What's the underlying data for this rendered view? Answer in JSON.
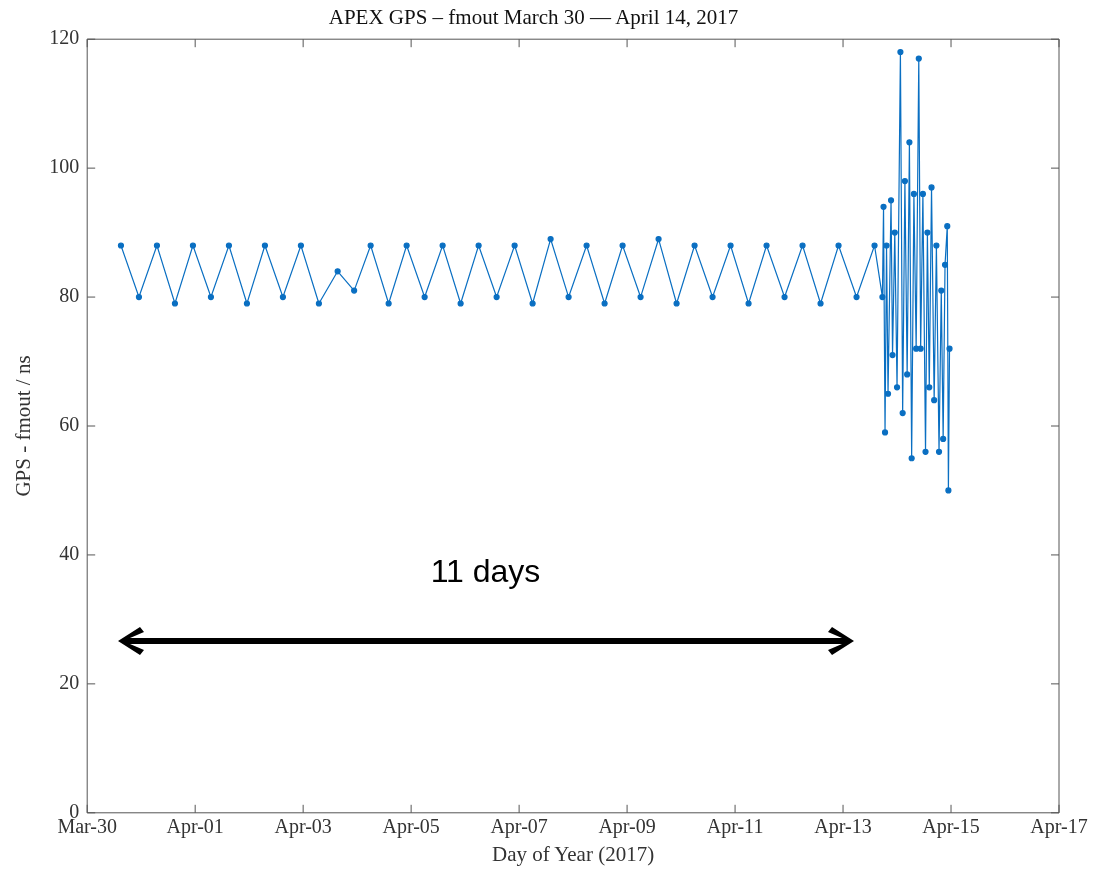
{
  "chart_data": {
    "type": "line",
    "title": "APEX GPS – fmout March 30 — April 14, 2017",
    "xlabel": "Day of Year (2017)",
    "ylabel": "GPS - fmout / ns",
    "x": [
      "2017-03-30T15:00",
      "2017-03-30T23:00",
      "2017-03-31T07:00",
      "2017-03-31T15:00",
      "2017-03-31T23:00",
      "2017-04-01T07:00",
      "2017-04-01T15:00",
      "2017-04-01T23:00",
      "2017-04-02T07:00",
      "2017-04-02T15:00",
      "2017-04-02T23:00",
      "2017-04-03T07:00",
      "2017-04-03T15:20",
      "2017-04-03T22:40",
      "2017-04-04T06:00",
      "2017-04-04T14:00",
      "2017-04-04T22:00",
      "2017-04-05T06:00",
      "2017-04-05T14:00",
      "2017-04-05T22:00",
      "2017-04-06T06:00",
      "2017-04-06T14:00",
      "2017-04-06T22:00",
      "2017-04-07T06:00",
      "2017-04-07T14:00",
      "2017-04-07T22:00",
      "2017-04-08T06:00",
      "2017-04-08T14:00",
      "2017-04-08T22:00",
      "2017-04-09T06:00",
      "2017-04-09T14:00",
      "2017-04-09T22:00",
      "2017-04-10T06:00",
      "2017-04-10T14:00",
      "2017-04-10T22:00",
      "2017-04-11T06:00",
      "2017-04-11T14:00",
      "2017-04-11T22:00",
      "2017-04-12T06:00",
      "2017-04-12T14:00",
      "2017-04-12T22:00",
      "2017-04-13T06:00",
      "2017-04-13T14:00",
      "2017-04-13T17:30",
      "2017-04-13T18:00",
      "2017-04-13T18:40",
      "2017-04-13T19:20",
      "2017-04-13T20:00",
      "2017-04-13T21:20",
      "2017-04-13T22:00",
      "2017-04-13T23:00",
      "2017-04-14T00:00",
      "2017-04-14T01:30",
      "2017-04-14T02:30",
      "2017-04-14T03:30",
      "2017-04-14T04:30",
      "2017-04-14T05:30",
      "2017-04-14T06:30",
      "2017-04-14T07:30",
      "2017-04-14T08:30",
      "2017-04-14T09:40",
      "2017-04-14T10:30",
      "2017-04-14T11:30",
      "2017-04-14T12:40",
      "2017-04-14T13:30",
      "2017-04-14T14:20",
      "2017-04-14T15:20",
      "2017-04-14T16:30",
      "2017-04-14T17:30",
      "2017-04-14T18:40",
      "2017-04-14T19:40",
      "2017-04-14T20:30",
      "2017-04-14T21:20",
      "2017-04-14T22:20",
      "2017-04-14T22:50",
      "2017-04-14T23:20"
    ],
    "series": [
      {
        "color": "#0a6fc2",
        "values": [
          88,
          80,
          88,
          79,
          88,
          80,
          88,
          79,
          88,
          80,
          88,
          79,
          84,
          81,
          88,
          79,
          88,
          80,
          88,
          79,
          88,
          80,
          88,
          79,
          89,
          80,
          88,
          79,
          88,
          80,
          89,
          79,
          88,
          80,
          88,
          79,
          88,
          80,
          88,
          79,
          88,
          80,
          88,
          80,
          94,
          59,
          88,
          65,
          95,
          71,
          90,
          66,
          118,
          62,
          98,
          68,
          104,
          55,
          96,
          72,
          117,
          72,
          96,
          56,
          90,
          66,
          97,
          64,
          88,
          56,
          81,
          58,
          85,
          91,
          50,
          72
        ]
      }
    ],
    "xlim": [
      "2017-03-30",
      "2017-04-17"
    ],
    "xticks": [
      {
        "value": "2017-03-30",
        "label": "Mar-30"
      },
      {
        "value": "2017-04-01",
        "label": "Apr-01"
      },
      {
        "value": "2017-04-03",
        "label": "Apr-03"
      },
      {
        "value": "2017-04-05",
        "label": "Apr-05"
      },
      {
        "value": "2017-04-07",
        "label": "Apr-07"
      },
      {
        "value": "2017-04-09",
        "label": "Apr-09"
      },
      {
        "value": "2017-04-11",
        "label": "Apr-11"
      },
      {
        "value": "2017-04-13",
        "label": "Apr-13"
      },
      {
        "value": "2017-04-15",
        "label": "Apr-15"
      },
      {
        "value": "2017-04-17",
        "label": "Apr-17"
      }
    ],
    "ylim": [
      0,
      120
    ],
    "yticks": [
      0,
      20,
      40,
      60,
      80,
      100,
      120
    ],
    "marker": "circle",
    "line_style": "solid",
    "grid": false,
    "legend": false,
    "annotations": [
      "11 days"
    ]
  }
}
